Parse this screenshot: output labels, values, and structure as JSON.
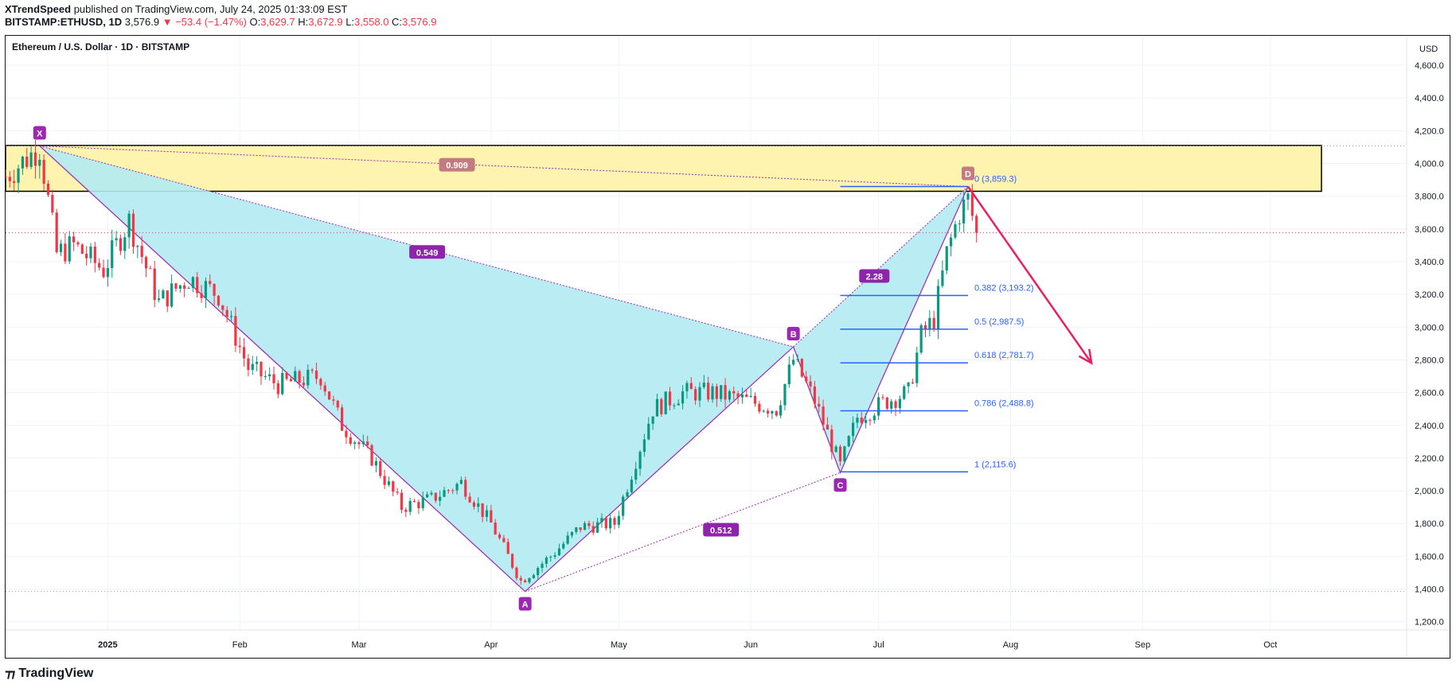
{
  "header": {
    "author": "XTrendSpeed",
    "published_text": "published on TradingView.com, July 24, 2025 01:33:09 EST",
    "symbol": "BITSTAMP:ETHUSD, 1D",
    "price": "3,576.9",
    "change": "▼ −53.4 (−1.47%)",
    "open_label": "O:",
    "open": "3,629.7",
    "high_label": "H:",
    "high": "3,672.9",
    "low_label": "L:",
    "low": "3,558.0",
    "close_label": "C:",
    "close": "3,576.9"
  },
  "chart_data": {
    "type": "candlestick",
    "title": "Ethereum / U.S. Dollar · 1D · BITSTAMP",
    "currency": "USD",
    "y_ticks": [
      1200,
      1400,
      1600,
      1800,
      2000,
      2200,
      2400,
      2600,
      2800,
      3000,
      3200,
      3400,
      3600,
      3800,
      4000,
      4200,
      4400,
      4600
    ],
    "y_tick_labels": [
      "1,200.0",
      "1,400.0",
      "1,600.0",
      "1,800.0",
      "2,000.0",
      "2,200.0",
      "2,400.0",
      "2,600.0",
      "2,800.0",
      "3,000.0",
      "3,200.0",
      "3,400.0",
      "3,600.0",
      "3,800.0",
      "4,000.0",
      "4,200.0",
      "4,400.0",
      "4,600.0"
    ],
    "ylim": [
      1150,
      4780
    ],
    "xlim": [
      "2024-12-08",
      "2025-11-02"
    ],
    "x_ticks": [
      {
        "date": "2025-01-01",
        "label": "2025"
      },
      {
        "date": "2025-02-01",
        "label": "Feb"
      },
      {
        "date": "2025-03-01",
        "label": "Mar"
      },
      {
        "date": "2025-04-01",
        "label": "Apr"
      },
      {
        "date": "2025-05-01",
        "label": "May"
      },
      {
        "date": "2025-06-01",
        "label": "Jun"
      },
      {
        "date": "2025-07-01",
        "label": "Jul"
      },
      {
        "date": "2025-08-01",
        "label": "Aug"
      },
      {
        "date": "2025-09-01",
        "label": "Sep"
      },
      {
        "date": "2025-10-01",
        "label": "Oct"
      }
    ],
    "last_price": 3576.9,
    "last_price_color": "#f23645",
    "up_color": "#089981",
    "down_color": "#f23645",
    "path": [
      [
        "2024-12-08",
        3920
      ],
      [
        "2024-12-16",
        4100
      ],
      [
        "2024-12-20",
        3450
      ],
      [
        "2024-12-24",
        3500
      ],
      [
        "2024-12-31",
        3350
      ],
      [
        "2025-01-06",
        3650
      ],
      [
        "2025-01-13",
        3150
      ],
      [
        "2025-01-20",
        3300
      ],
      [
        "2025-01-27",
        3200
      ],
      [
        "2025-02-03",
        2750
      ],
      [
        "2025-02-10",
        2650
      ],
      [
        "2025-02-20",
        2700
      ],
      [
        "2025-02-25",
        2400
      ],
      [
        "2025-03-04",
        2200
      ],
      [
        "2025-03-11",
        1900
      ],
      [
        "2025-03-18",
        1950
      ],
      [
        "2025-03-25",
        2050
      ],
      [
        "2025-04-01",
        1800
      ],
      [
        "2025-04-08",
        1450
      ],
      [
        "2025-04-15",
        1600
      ],
      [
        "2025-04-22",
        1780
      ],
      [
        "2025-04-30",
        1800
      ],
      [
        "2025-05-09",
        2500
      ],
      [
        "2025-05-16",
        2600
      ],
      [
        "2025-05-23",
        2600
      ],
      [
        "2025-05-31",
        2550
      ],
      [
        "2025-06-07",
        2500
      ],
      [
        "2025-06-11",
        2800
      ],
      [
        "2025-06-16",
        2550
      ],
      [
        "2025-06-22",
        2150
      ],
      [
        "2025-06-26",
        2450
      ],
      [
        "2025-07-03",
        2550
      ],
      [
        "2025-07-08",
        2600
      ],
      [
        "2025-07-11",
        2950
      ],
      [
        "2025-07-14",
        3050
      ],
      [
        "2025-07-17",
        3450
      ],
      [
        "2025-07-20",
        3700
      ],
      [
        "2025-07-22",
        3780
      ],
      [
        "2025-07-24",
        3577
      ]
    ],
    "zone": {
      "from_date": "2024-12-08",
      "to_date": "2025-10-13",
      "low": 3830,
      "high": 4110,
      "color": "#fff3b0"
    },
    "harmonic": {
      "points": [
        {
          "label": "X",
          "date": "2024-12-16",
          "value": 4107
        },
        {
          "label": "A",
          "date": "2025-04-09",
          "value": 1385
        },
        {
          "label": "B",
          "date": "2025-06-11",
          "value": 2880
        },
        {
          "label": "C",
          "date": "2025-06-22",
          "value": 2111
        },
        {
          "label": "D",
          "date": "2025-07-22",
          "value": 3859
        }
      ],
      "ratios": [
        {
          "label": "0.909",
          "date": "2025-03-24",
          "value": 3990,
          "color": "#c27b7f"
        },
        {
          "label": "0.549",
          "date": "2025-03-17",
          "value": 3457,
          "color": "#8e24aa"
        },
        {
          "label": "0.512",
          "date": "2025-05-25",
          "value": 1760,
          "color": "#8e24aa"
        },
        {
          "label": "2.28",
          "date": "2025-06-30",
          "value": 3310,
          "color": "#8e24aa"
        }
      ],
      "fill": "#b2ebf2",
      "line_color": "#9c27b0"
    },
    "fib_levels": [
      {
        "ratio": "0",
        "label": "0 (3,859.3)",
        "value": 3859.3
      },
      {
        "ratio": "0.382",
        "label": "0.382 (3,193.2)",
        "value": 3193.2
      },
      {
        "ratio": "0.5",
        "label": "0.5 (2,987.5)",
        "value": 2987.5
      },
      {
        "ratio": "0.618",
        "label": "0.618 (2,781.7)",
        "value": 2781.7
      },
      {
        "ratio": "0.786",
        "label": "0.786 (2,488.8)",
        "value": 2488.8
      },
      {
        "ratio": "1",
        "label": "1 (2,115.6)",
        "value": 2115.6
      }
    ],
    "fib_color": "#2962ff",
    "fib_from_date": "2025-06-22",
    "fib_to_date": "2025-07-22",
    "projection_arrow": {
      "from": [
        "2025-07-22",
        3859
      ],
      "to": [
        "2025-08-20",
        2780
      ],
      "color": "#e91e63"
    },
    "h_dotted_lines": [
      {
        "value": 4107,
        "color": "#9598a1"
      },
      {
        "value": 1385,
        "color": "#9598a1"
      }
    ]
  },
  "footer": {
    "brand": "TradingView"
  }
}
